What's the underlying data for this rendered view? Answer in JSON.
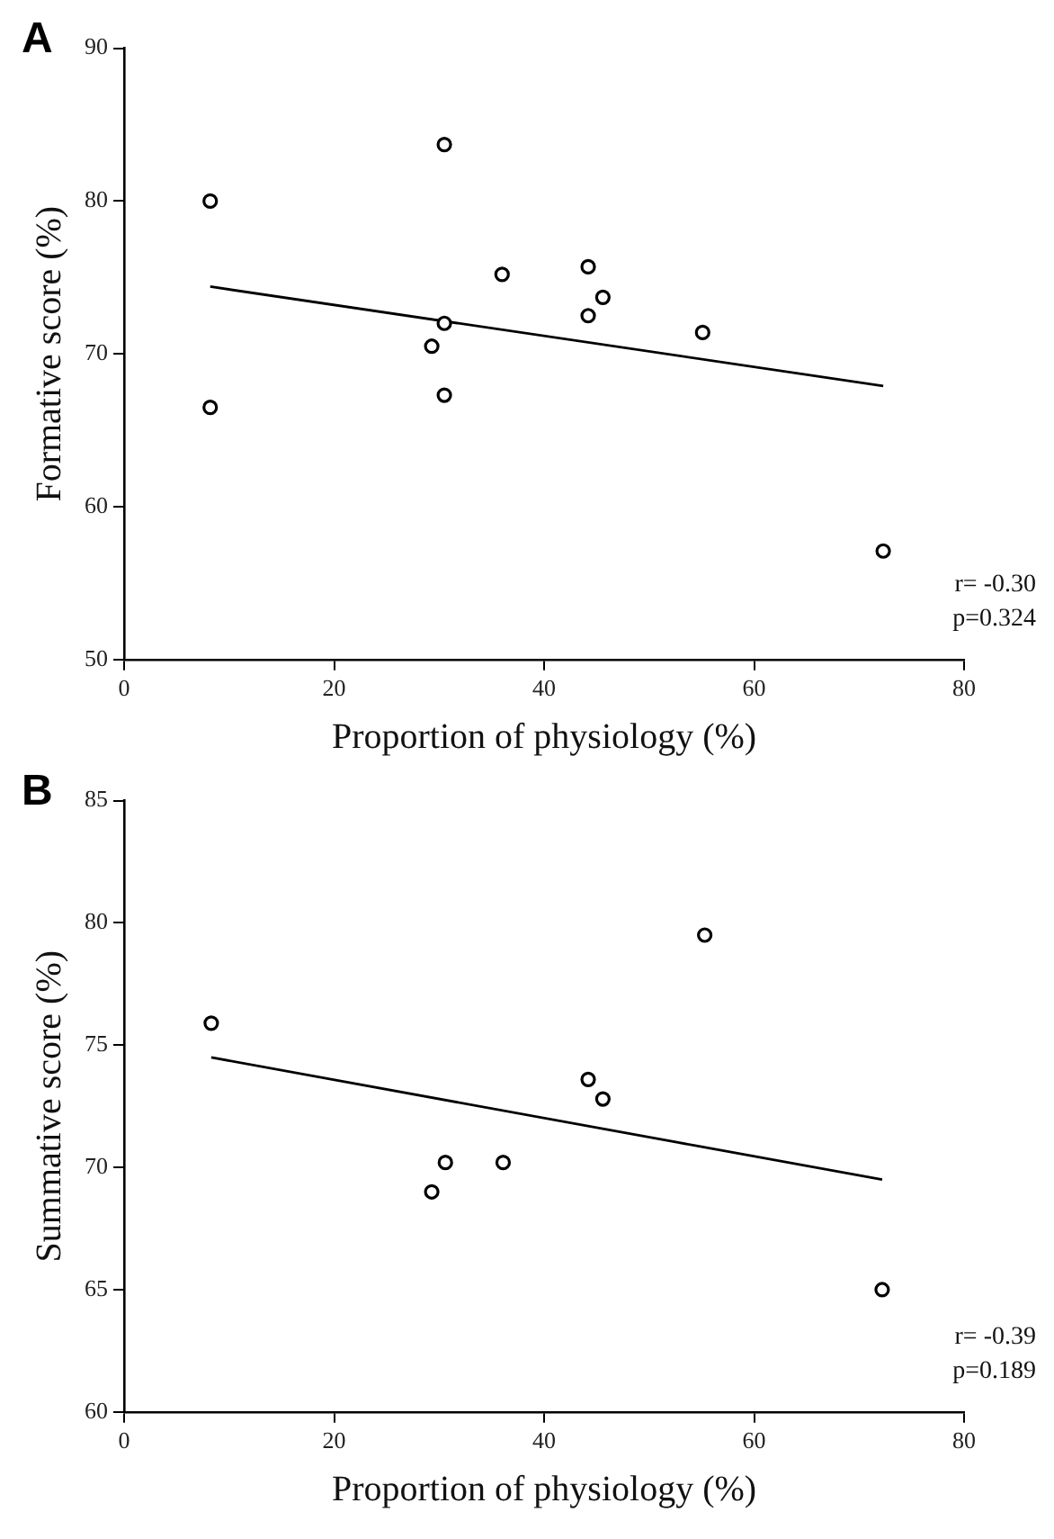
{
  "chart_data": [
    {
      "type": "scatter",
      "title": "A",
      "xlabel": "Proportion of physiology (%)",
      "ylabel": "Formative score (%)",
      "xlim": [
        0,
        80
      ],
      "xticks": [
        0,
        20,
        40,
        60,
        80
      ],
      "ylim": [
        50,
        90
      ],
      "yticks": [
        50,
        60,
        70,
        80,
        90
      ],
      "grid": false,
      "legend": false,
      "marker": "circle",
      "annotations": [
        "r= -0.30",
        "p=0.324"
      ],
      "series": [
        {
          "type": "scatter",
          "color": "#000000",
          "x": [
            8.2,
            8.2,
            30.5,
            36.0,
            44.2,
            45.6,
            44.2,
            55.1,
            30.5,
            29.3,
            30.5,
            72.3
          ],
          "values": [
            80.0,
            66.5,
            83.7,
            75.2,
            75.7,
            73.7,
            72.5,
            71.4,
            72.0,
            70.5,
            67.3,
            57.1
          ]
        },
        {
          "type": "line",
          "color": "#000000",
          "marker": "none",
          "x": [
            8.2,
            72.3
          ],
          "values": [
            74.4,
            67.9
          ]
        }
      ]
    },
    {
      "type": "scatter",
      "title": "B",
      "xlabel": "Proportion of physiology (%)",
      "ylabel": "Summative score (%)",
      "xlim": [
        0,
        80
      ],
      "xticks": [
        0,
        20,
        40,
        60,
        80
      ],
      "ylim": [
        60,
        85
      ],
      "yticks": [
        60,
        65,
        70,
        75,
        80,
        85
      ],
      "grid": false,
      "legend": false,
      "marker": "circle",
      "annotations": [
        "r= -0.39",
        "p=0.189"
      ],
      "series": [
        {
          "type": "scatter",
          "color": "#000000",
          "x": [
            8.3,
            55.3,
            44.2,
            45.6,
            30.6,
            36.1,
            29.3,
            72.2
          ],
          "values": [
            75.9,
            79.5,
            73.6,
            72.8,
            70.2,
            70.2,
            69.0,
            65.0
          ]
        },
        {
          "type": "line",
          "color": "#000000",
          "marker": "none",
          "x": [
            8.3,
            72.2
          ],
          "values": [
            74.5,
            69.5
          ]
        }
      ]
    }
  ]
}
